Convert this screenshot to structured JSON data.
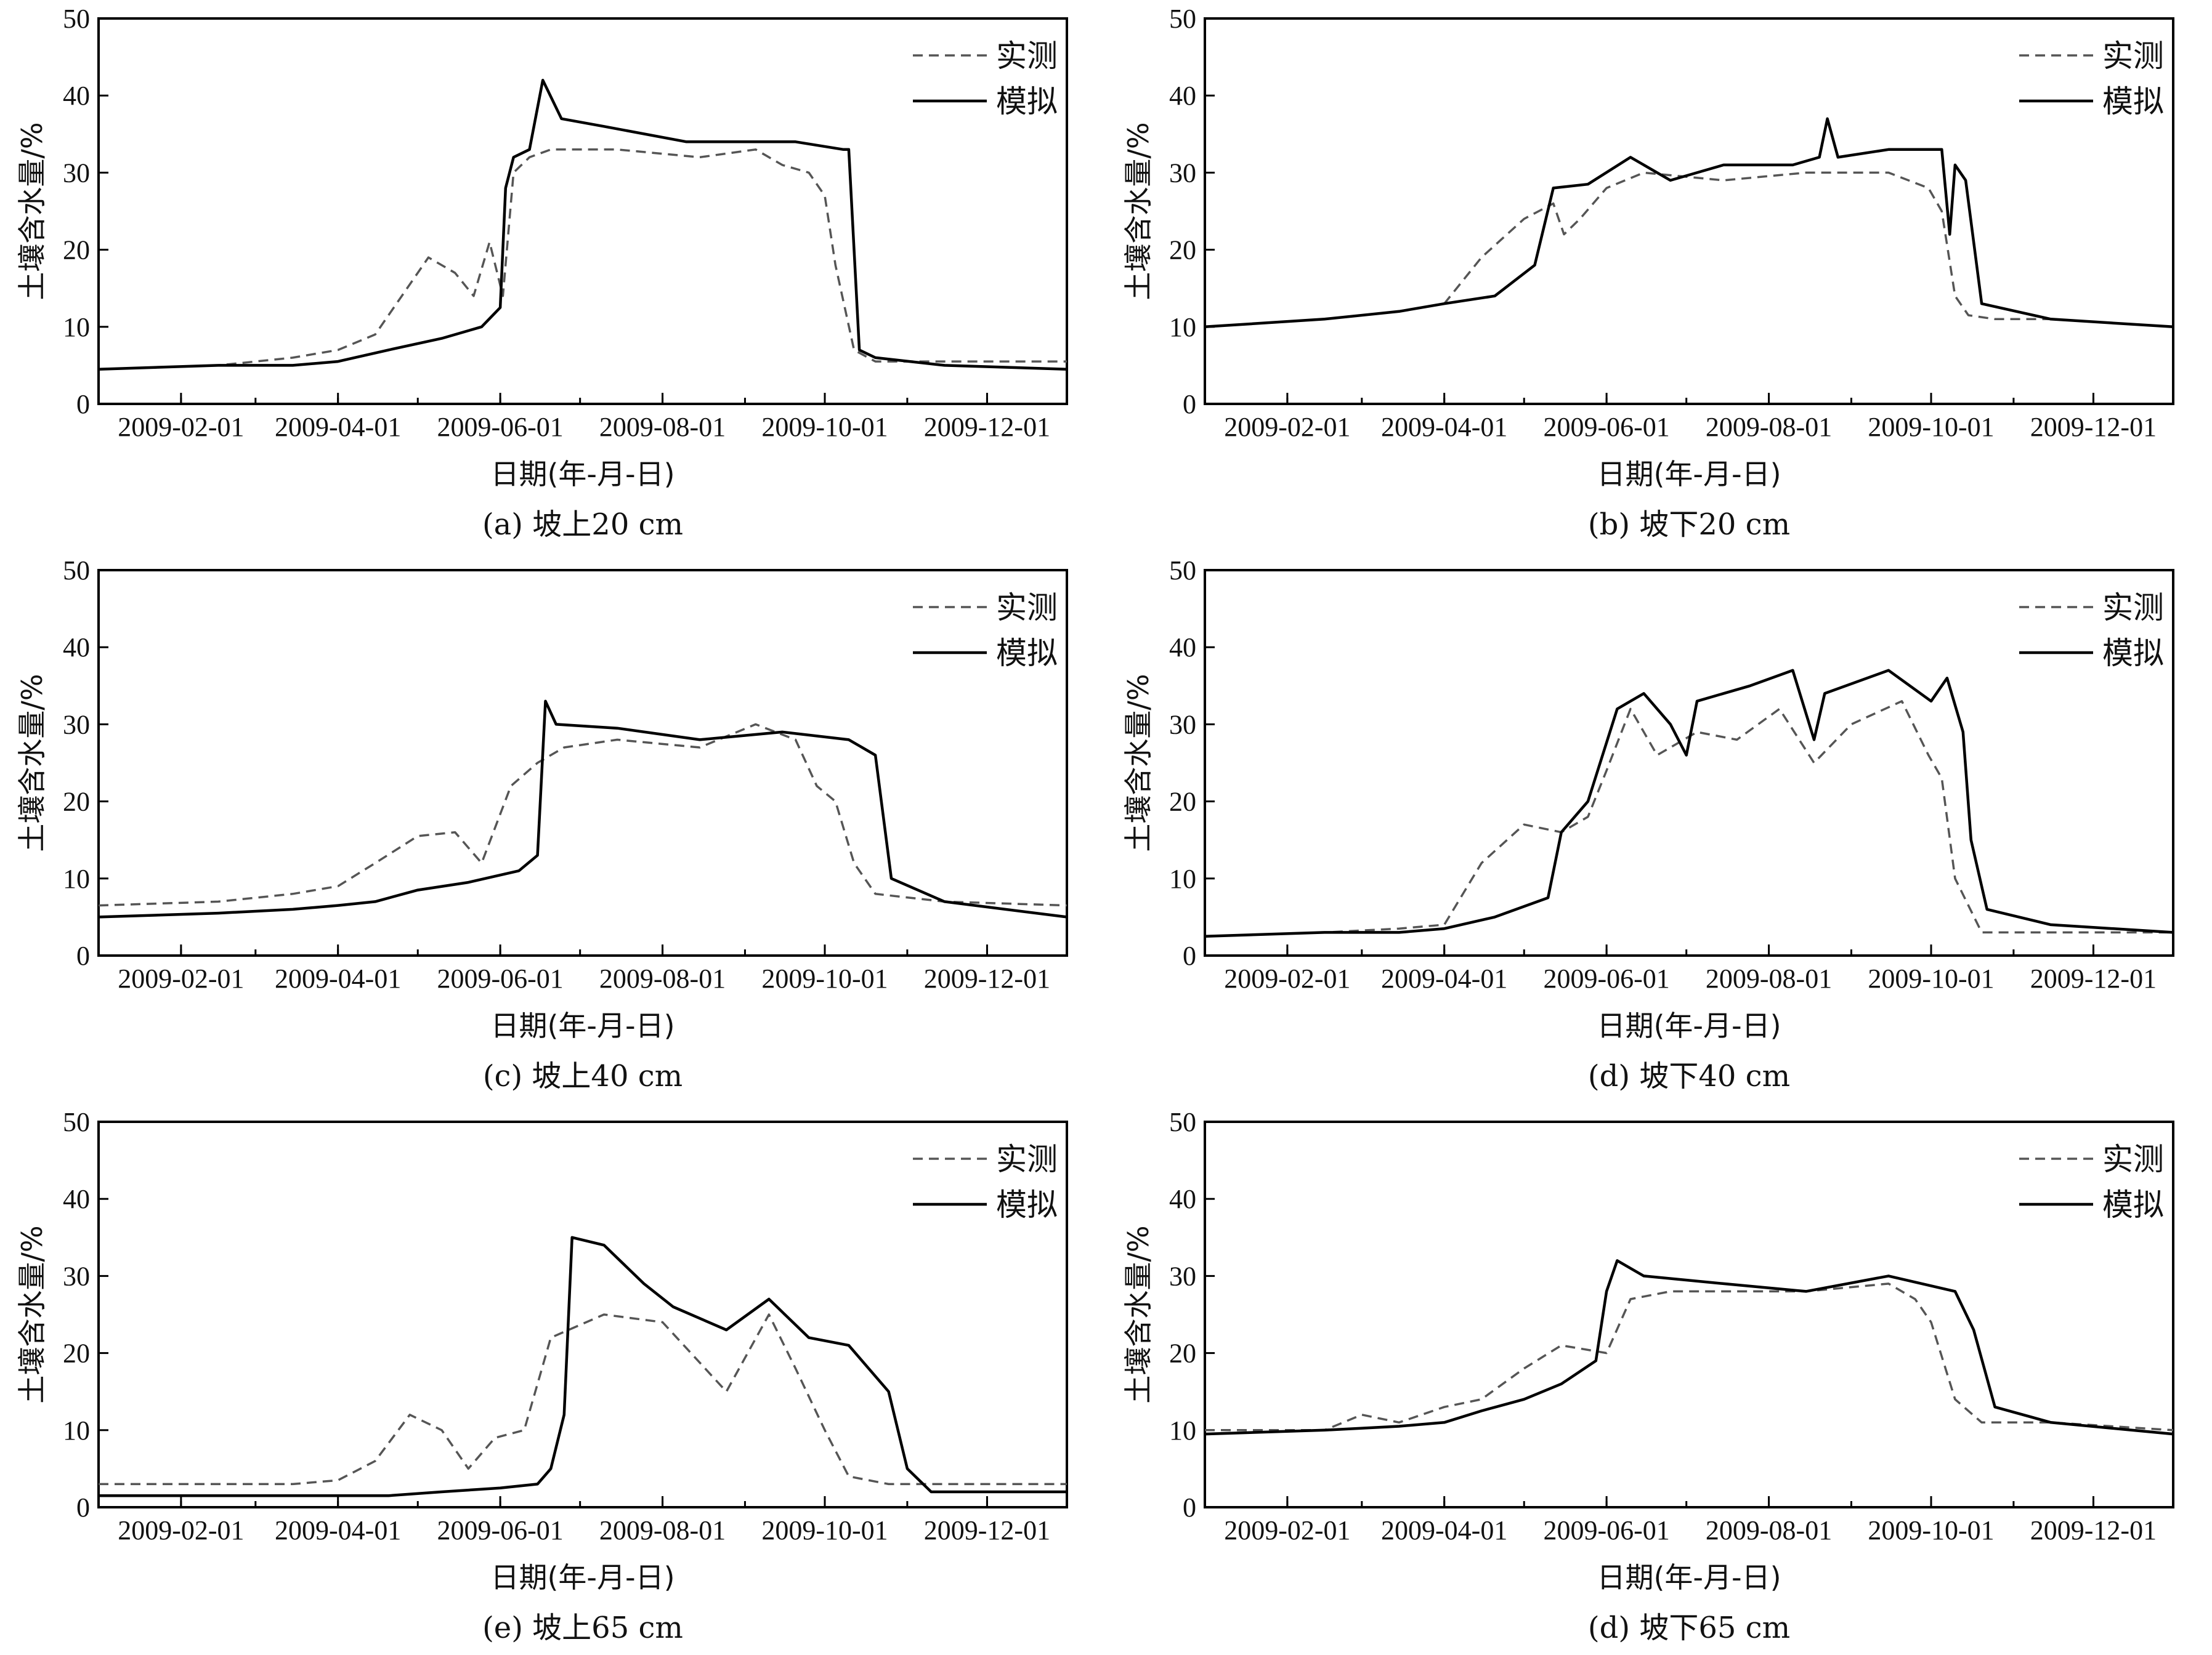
{
  "chart_data": [
    {
      "panel": "a",
      "type": "line",
      "caption": "(a) 坡上20 cm",
      "xlabel": "日期(年-月-日)",
      "ylabel": "土壤含水量/%",
      "xticks": [
        "2009-02-01",
        "2009-04-01",
        "2009-06-01",
        "2009-08-01",
        "2009-10-01",
        "2009-12-01"
      ],
      "xlim": [
        "2009-01-01",
        "2009-12-31"
      ],
      "ylim": [
        0,
        50
      ],
      "yticks": [
        "0",
        "10",
        "20",
        "30",
        "40",
        "50"
      ],
      "legend_position": "top-right",
      "series": [
        {
          "name": "实测",
          "style": "dashed",
          "x": [
            "2009-01-01",
            "2009-02-15",
            "2009-03-15",
            "2009-04-01",
            "2009-04-15",
            "2009-04-25",
            "2009-05-05",
            "2009-05-15",
            "2009-05-22",
            "2009-05-28",
            "2009-06-02",
            "2009-06-06",
            "2009-06-12",
            "2009-06-20",
            "2009-07-15",
            "2009-08-15",
            "2009-09-05",
            "2009-09-15",
            "2009-09-25",
            "2009-10-01",
            "2009-10-05",
            "2009-10-12",
            "2009-10-20",
            "2009-11-15",
            "2009-12-31"
          ],
          "y": [
            4.5,
            5,
            6,
            7,
            9,
            14,
            19,
            17,
            14,
            21,
            14,
            30,
            32,
            33,
            33,
            32,
            33,
            31,
            30,
            27,
            18,
            7,
            5.5,
            5.5,
            5.5
          ]
        },
        {
          "name": "模拟",
          "style": "solid",
          "x": [
            "2009-01-01",
            "2009-02-15",
            "2009-03-15",
            "2009-04-01",
            "2009-04-20",
            "2009-05-10",
            "2009-05-25",
            "2009-06-01",
            "2009-06-03",
            "2009-06-06",
            "2009-06-12",
            "2009-06-17",
            "2009-06-24",
            "2009-07-10",
            "2009-08-10",
            "2009-09-01",
            "2009-09-20",
            "2009-10-08",
            "2009-10-10",
            "2009-10-14",
            "2009-10-20",
            "2009-11-15",
            "2009-12-31"
          ],
          "y": [
            4.5,
            5,
            5,
            5.5,
            7,
            8.5,
            10,
            12.5,
            28,
            32,
            33,
            42,
            37,
            36,
            34,
            34,
            34,
            33,
            33,
            7,
            6,
            5,
            4.5
          ]
        }
      ]
    },
    {
      "panel": "b",
      "type": "line",
      "caption": "(b) 坡下20 cm",
      "xlabel": "日期(年-月-日)",
      "ylabel": "土壤含水量/%",
      "xticks": [
        "2009-02-01",
        "2009-04-01",
        "2009-06-01",
        "2009-08-01",
        "2009-10-01",
        "2009-12-01"
      ],
      "xlim": [
        "2009-01-01",
        "2009-12-31"
      ],
      "ylim": [
        0,
        50
      ],
      "yticks": [
        "0",
        "10",
        "20",
        "30",
        "40",
        "50"
      ],
      "legend_position": "top-right",
      "series": [
        {
          "name": "实测",
          "style": "dashed",
          "x": [
            "2009-01-01",
            "2009-02-15",
            "2009-03-15",
            "2009-04-01",
            "2009-04-15",
            "2009-05-01",
            "2009-05-12",
            "2009-05-16",
            "2009-05-22",
            "2009-06-01",
            "2009-06-15",
            "2009-07-15",
            "2009-08-15",
            "2009-09-15",
            "2009-09-30",
            "2009-10-05",
            "2009-10-10",
            "2009-10-15",
            "2009-10-25",
            "2009-11-15",
            "2009-12-31"
          ],
          "y": [
            10,
            11,
            12,
            13,
            19,
            24,
            26,
            22,
            24,
            28,
            30,
            29,
            30,
            30,
            28,
            25,
            14,
            11.5,
            11,
            11,
            10
          ]
        },
        {
          "name": "模拟",
          "style": "solid",
          "x": [
            "2009-01-01",
            "2009-02-15",
            "2009-03-15",
            "2009-04-01",
            "2009-04-20",
            "2009-05-05",
            "2009-05-12",
            "2009-05-25",
            "2009-06-10",
            "2009-06-25",
            "2009-07-15",
            "2009-08-10",
            "2009-08-20",
            "2009-08-23",
            "2009-08-27",
            "2009-09-15",
            "2009-10-05",
            "2009-10-08",
            "2009-10-10",
            "2009-10-14",
            "2009-10-20",
            "2009-11-15",
            "2009-12-31"
          ],
          "y": [
            10,
            11,
            12,
            13,
            14,
            18,
            28,
            28.5,
            32,
            29,
            31,
            31,
            32,
            37,
            32,
            33,
            33,
            22,
            31,
            29,
            13,
            11,
            10
          ]
        }
      ]
    },
    {
      "panel": "c",
      "type": "line",
      "caption": "(c) 坡上40 cm",
      "xlabel": "日期(年-月-日)",
      "ylabel": "土壤含水量/%",
      "xticks": [
        "2009-02-01",
        "2009-04-01",
        "2009-06-01",
        "2009-08-01",
        "2009-10-01",
        "2009-12-01"
      ],
      "xlim": [
        "2009-01-01",
        "2009-12-31"
      ],
      "ylim": [
        0,
        50
      ],
      "yticks": [
        "0",
        "10",
        "20",
        "30",
        "40",
        "50"
      ],
      "legend_position": "top-right",
      "series": [
        {
          "name": "实测",
          "style": "dashed",
          "x": [
            "2009-01-01",
            "2009-02-15",
            "2009-03-15",
            "2009-04-01",
            "2009-04-15",
            "2009-05-01",
            "2009-05-15",
            "2009-05-25",
            "2009-06-05",
            "2009-06-15",
            "2009-06-25",
            "2009-07-15",
            "2009-08-15",
            "2009-09-05",
            "2009-09-20",
            "2009-09-28",
            "2009-10-05",
            "2009-10-12",
            "2009-10-20",
            "2009-11-15",
            "2009-12-31"
          ],
          "y": [
            6.5,
            7,
            8,
            9,
            12,
            15.5,
            16,
            12,
            22,
            25,
            27,
            28,
            27,
            30,
            28,
            22,
            20,
            12,
            8,
            7,
            6.5
          ]
        },
        {
          "name": "模拟",
          "style": "solid",
          "x": [
            "2009-01-01",
            "2009-02-15",
            "2009-03-15",
            "2009-04-01",
            "2009-04-15",
            "2009-05-01",
            "2009-05-20",
            "2009-06-08",
            "2009-06-15",
            "2009-06-18",
            "2009-06-22",
            "2009-07-15",
            "2009-08-15",
            "2009-09-15",
            "2009-10-10",
            "2009-10-20",
            "2009-10-26",
            "2009-11-15",
            "2009-12-31"
          ],
          "y": [
            5,
            5.5,
            6,
            6.5,
            7,
            8.5,
            9.5,
            11,
            13,
            33,
            30,
            29.5,
            28,
            29,
            28,
            26,
            10,
            7,
            5
          ]
        }
      ]
    },
    {
      "panel": "d",
      "type": "line",
      "caption": "(d) 坡下40 cm",
      "xlabel": "日期(年-月-日)",
      "ylabel": "土壤含水量/%",
      "xticks": [
        "2009-02-01",
        "2009-04-01",
        "2009-06-01",
        "2009-08-01",
        "2009-10-01",
        "2009-12-01"
      ],
      "xlim": [
        "2009-01-01",
        "2009-12-31"
      ],
      "ylim": [
        0,
        50
      ],
      "yticks": [
        "0",
        "10",
        "20",
        "30",
        "40",
        "50"
      ],
      "legend_position": "top-right",
      "series": [
        {
          "name": "实测",
          "style": "dashed",
          "x": [
            "2009-01-01",
            "2009-02-15",
            "2009-03-15",
            "2009-04-01",
            "2009-04-15",
            "2009-05-01",
            "2009-05-15",
            "2009-05-25",
            "2009-06-01",
            "2009-06-10",
            "2009-06-20",
            "2009-07-05",
            "2009-07-20",
            "2009-08-05",
            "2009-08-18",
            "2009-09-01",
            "2009-09-20",
            "2009-09-30",
            "2009-10-05",
            "2009-10-10",
            "2009-10-20",
            "2009-11-15",
            "2009-12-31"
          ],
          "y": [
            2.5,
            3,
            3.5,
            4,
            12,
            17,
            16,
            18,
            24,
            32,
            26,
            29,
            28,
            32,
            25,
            30,
            33,
            26,
            23,
            10,
            3,
            3,
            3
          ]
        },
        {
          "name": "模拟",
          "style": "solid",
          "x": [
            "2009-01-01",
            "2009-02-15",
            "2009-03-15",
            "2009-04-01",
            "2009-04-20",
            "2009-05-10",
            "2009-05-15",
            "2009-05-25",
            "2009-06-05",
            "2009-06-15",
            "2009-06-25",
            "2009-07-01",
            "2009-07-05",
            "2009-07-25",
            "2009-08-10",
            "2009-08-18",
            "2009-08-22",
            "2009-09-15",
            "2009-10-01",
            "2009-10-07",
            "2009-10-13",
            "2009-10-16",
            "2009-10-22",
            "2009-11-15",
            "2009-12-31"
          ],
          "y": [
            2.5,
            3,
            3,
            3.5,
            5,
            7.5,
            16,
            20,
            32,
            34,
            30,
            26,
            33,
            35,
            37,
            28,
            34,
            37,
            33,
            36,
            29,
            15,
            6,
            4,
            3
          ]
        }
      ]
    },
    {
      "panel": "e",
      "type": "line",
      "caption": "(e) 坡上65 cm",
      "xlabel": "日期(年-月-日)",
      "ylabel": "土壤含水量/%",
      "xticks": [
        "2009-02-01",
        "2009-04-01",
        "2009-06-01",
        "2009-08-01",
        "2009-10-01",
        "2009-12-01"
      ],
      "xlim": [
        "2009-01-01",
        "2009-12-31"
      ],
      "ylim": [
        0,
        50
      ],
      "yticks": [
        "0",
        "10",
        "20",
        "30",
        "40",
        "50"
      ],
      "legend_position": "top-right",
      "series": [
        {
          "name": "实测",
          "style": "dashed",
          "x": [
            "2009-01-01",
            "2009-02-15",
            "2009-03-15",
            "2009-04-01",
            "2009-04-15",
            "2009-04-28",
            "2009-05-10",
            "2009-05-20",
            "2009-05-30",
            "2009-06-10",
            "2009-06-20",
            "2009-07-10",
            "2009-08-01",
            "2009-08-25",
            "2009-09-10",
            "2009-09-20",
            "2009-10-01",
            "2009-10-10",
            "2009-10-25",
            "2009-11-15",
            "2009-12-31"
          ],
          "y": [
            3,
            3,
            3,
            3.5,
            6,
            12,
            10,
            5,
            9,
            10,
            22,
            25,
            24,
            15,
            25,
            18,
            10,
            4,
            3,
            3,
            3
          ]
        },
        {
          "name": "模拟",
          "style": "solid",
          "x": [
            "2009-01-01",
            "2009-02-15",
            "2009-03-15",
            "2009-04-01",
            "2009-04-20",
            "2009-05-10",
            "2009-06-01",
            "2009-06-15",
            "2009-06-20",
            "2009-06-25",
            "2009-06-28",
            "2009-07-10",
            "2009-07-25",
            "2009-08-05",
            "2009-08-25",
            "2009-09-10",
            "2009-09-25",
            "2009-10-10",
            "2009-10-25",
            "2009-11-01",
            "2009-11-10",
            "2009-11-25",
            "2009-12-31"
          ],
          "y": [
            1.5,
            1.5,
            1.5,
            1.5,
            1.5,
            2,
            2.5,
            3,
            5,
            12,
            35,
            34,
            29,
            26,
            23,
            27,
            22,
            21,
            15,
            5,
            2,
            2,
            2
          ]
        }
      ]
    },
    {
      "panel": "f",
      "type": "line",
      "caption": "(d) 坡下65 cm",
      "xlabel": "日期(年-月-日)",
      "ylabel": "土壤含水量/%",
      "xticks": [
        "2009-02-01",
        "2009-04-01",
        "2009-06-01",
        "2009-08-01",
        "2009-10-01",
        "2009-12-01"
      ],
      "xlim": [
        "2009-01-01",
        "2009-12-31"
      ],
      "ylim": [
        0,
        50
      ],
      "yticks": [
        "0",
        "10",
        "20",
        "30",
        "40",
        "50"
      ],
      "legend_position": "top-right",
      "series": [
        {
          "name": "实测",
          "style": "dashed",
          "x": [
            "2009-01-01",
            "2009-02-15",
            "2009-03-01",
            "2009-03-15",
            "2009-04-01",
            "2009-04-15",
            "2009-05-01",
            "2009-05-15",
            "2009-06-01",
            "2009-06-10",
            "2009-06-25",
            "2009-07-15",
            "2009-08-15",
            "2009-09-15",
            "2009-09-25",
            "2009-10-01",
            "2009-10-10",
            "2009-10-20",
            "2009-11-15",
            "2009-12-31"
          ],
          "y": [
            10,
            10,
            12,
            11,
            13,
            14,
            18,
            21,
            20,
            27,
            28,
            28,
            28,
            29,
            27,
            24,
            14,
            11,
            11,
            10
          ]
        },
        {
          "name": "模拟",
          "style": "solid",
          "x": [
            "2009-01-01",
            "2009-02-15",
            "2009-03-15",
            "2009-04-01",
            "2009-04-15",
            "2009-05-01",
            "2009-05-15",
            "2009-05-28",
            "2009-06-01",
            "2009-06-05",
            "2009-06-15",
            "2009-07-15",
            "2009-08-15",
            "2009-09-15",
            "2009-10-10",
            "2009-10-17",
            "2009-10-25",
            "2009-11-15",
            "2009-12-31"
          ],
          "y": [
            9.5,
            10,
            10.5,
            11,
            12.5,
            14,
            16,
            19,
            28,
            32,
            30,
            29,
            28,
            30,
            28,
            23,
            13,
            11,
            9.5
          ]
        }
      ]
    }
  ]
}
